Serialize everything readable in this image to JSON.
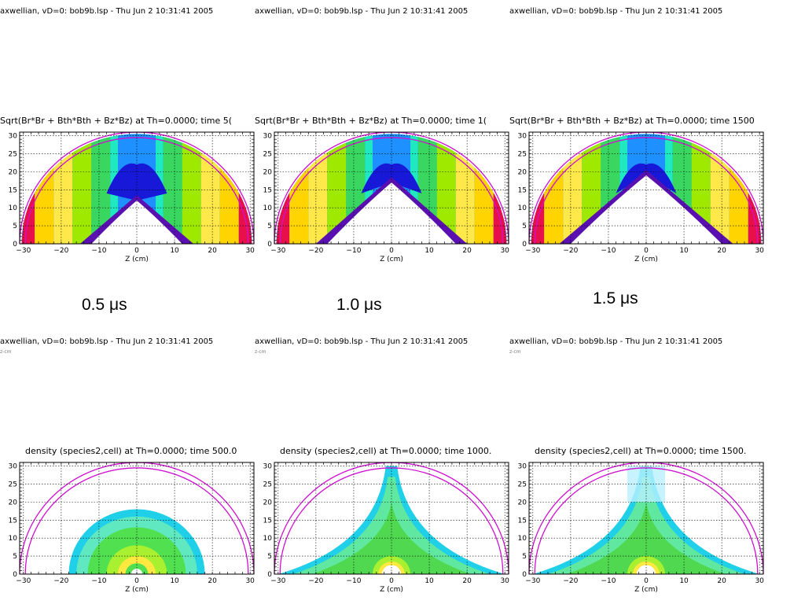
{
  "header_text": "axwellian, vD=0: bob9b.lsp - Thu Jun  2 10:31:41 2005",
  "header_sub": "z-cm",
  "time_labels": [
    "0.5 μs",
    "1.0 μs",
    "1.5 μs"
  ],
  "field_titles": [
    "Sqrt(Br*Br +  Bth*Bth + Bz*Bz) at Th=0.0000; time 5(",
    "Sqrt(Br*Br +  Bth*Bth + Bz*Bz) at Th=0.0000; time 1(",
    "Sqrt(Br*Br +  Bth*Bth + Bz*Bz) at Th=0.0000; time 1500"
  ],
  "density_titles": [
    "density (species2,cell) at Th=0.0000; time 500.0",
    "density (species2,cell) at Th=0.0000; time 1000.",
    "density (species2,cell) at Th=0.0000; time 1500."
  ],
  "chart_data": [
    {
      "type": "heatmap",
      "title": "Sqrt(Br*Br +  Bth*Bth + Bz*Bz) at Th=0.0000; time 5(",
      "xlabel": "Z (cm)",
      "xlim": [
        -31,
        31
      ],
      "ylim": [
        0,
        31
      ],
      "xticks": [
        -30,
        -20,
        -10,
        0,
        10,
        20,
        30
      ],
      "yticks": [
        0,
        5,
        10,
        15,
        20,
        25,
        30
      ],
      "grid": true,
      "cavity_apex": 12,
      "cavity_half_base": 12
    },
    {
      "type": "heatmap",
      "title": "Sqrt(Br*Br +  Bth*Bth + Bz*Bz) at Th=0.0000; time 1(",
      "xlabel": "Z (cm)",
      "xlim": [
        -31,
        31
      ],
      "ylim": [
        0,
        31
      ],
      "xticks": [
        -30,
        -20,
        -10,
        0,
        10,
        20,
        30
      ],
      "yticks": [
        0,
        5,
        10,
        15,
        20,
        25,
        30
      ],
      "grid": true,
      "cavity_apex": 17,
      "cavity_half_base": 17
    },
    {
      "type": "heatmap",
      "title": "Sqrt(Br*Br +  Bth*Bth + Bz*Bz) at Th=0.0000; time 1500",
      "xlabel": "Z (cm)",
      "xlim": [
        -31,
        31
      ],
      "ylim": [
        0,
        31
      ],
      "xticks": [
        -30,
        -20,
        -10,
        0,
        10,
        20,
        30
      ],
      "yticks": [
        0,
        5,
        10,
        15,
        20,
        25,
        30
      ],
      "grid": true,
      "cavity_apex": 19,
      "cavity_half_base": 20
    },
    {
      "type": "heatmap",
      "title": "density (species2,cell) at Th=0.0000; time 500.0",
      "xlabel": "Z (cm)",
      "xlim": [
        -31,
        31
      ],
      "ylim": [
        0,
        31
      ],
      "xticks": [
        -30,
        -20,
        -10,
        0,
        10,
        20,
        30
      ],
      "yticks": [
        0,
        5,
        10,
        15,
        20,
        25,
        30
      ],
      "grid": true,
      "front_radius": 18
    },
    {
      "type": "heatmap",
      "title": "density (species2,cell) at Th=0.0000; time 1000.",
      "xlabel": "Z (cm)",
      "xlim": [
        -31,
        31
      ],
      "ylim": [
        0,
        31
      ],
      "xticks": [
        -30,
        -20,
        -10,
        0,
        10,
        20,
        30
      ],
      "yticks": [
        0,
        5,
        10,
        15,
        20,
        25,
        30
      ],
      "grid": true,
      "front_apex": 30,
      "front_half_base": 30
    },
    {
      "type": "heatmap",
      "title": "density (species2,cell) at Th=0.0000; time 1500.",
      "xlabel": "Z (cm)",
      "xlim": [
        -31,
        31
      ],
      "ylim": [
        0,
        31
      ],
      "xticks": [
        -30,
        -20,
        -10,
        0,
        10,
        20,
        30
      ],
      "yticks": [
        0,
        5,
        10,
        15,
        20,
        25,
        30
      ],
      "grid": true,
      "front_apex": 30,
      "front_half_base": 30
    }
  ]
}
